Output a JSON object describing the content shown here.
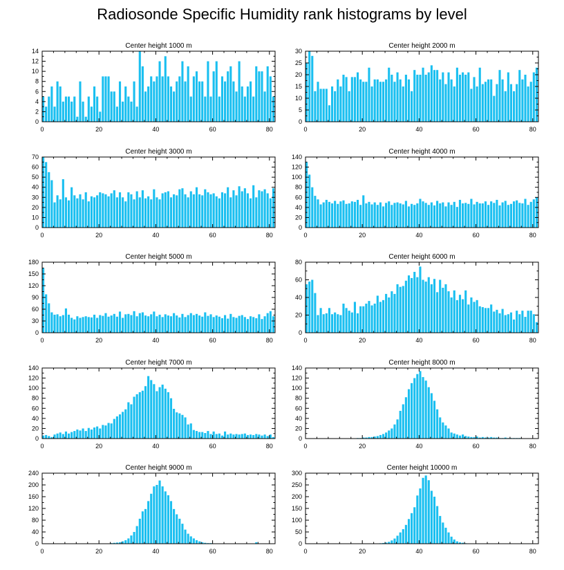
{
  "figure": {
    "title": "Radiosonde Specific Humidity rank histograms by level",
    "bar_color": "#1ABFF0"
  },
  "chart_data": [
    {
      "type": "bar",
      "title": "Center height 1000 m",
      "x_start": 0,
      "xlim": [
        0,
        82
      ],
      "xticks": [
        0,
        20,
        40,
        60,
        80
      ],
      "ylim": [
        0,
        14
      ],
      "yticks": [
        0,
        2,
        4,
        6,
        8,
        10,
        12,
        14
      ],
      "values": [
        5,
        3,
        5,
        7,
        3,
        8,
        7,
        4,
        5,
        5,
        4,
        5,
        1,
        8,
        4,
        1,
        5,
        3,
        7,
        5,
        2,
        9,
        9,
        9,
        6,
        6,
        3,
        8,
        4,
        7,
        5,
        4,
        8,
        3,
        14,
        11,
        6,
        7,
        9,
        8,
        9,
        12,
        9,
        13,
        9,
        7,
        6,
        8,
        9,
        12,
        8,
        11,
        5,
        9,
        10,
        8,
        8,
        5,
        12,
        5,
        10,
        12,
        5,
        9,
        8,
        10,
        11,
        8,
        6,
        12,
        7,
        5,
        7,
        8,
        5,
        11,
        10,
        10,
        6,
        11,
        9,
        5
      ]
    },
    {
      "type": "bar",
      "title": "Center height 2000 m",
      "x_start": 0,
      "xlim": [
        0,
        82
      ],
      "xticks": [
        0,
        20,
        40,
        60,
        80
      ],
      "ylim": [
        0,
        30
      ],
      "yticks": [
        0,
        5,
        10,
        15,
        20,
        25,
        30
      ],
      "values": [
        25,
        30,
        28,
        13,
        17,
        14,
        14,
        14,
        7,
        15,
        13,
        18,
        15,
        20,
        19,
        13,
        19,
        19,
        21,
        18,
        17,
        17,
        23,
        15,
        18,
        18,
        17,
        17,
        18,
        23,
        20,
        17,
        21,
        18,
        15,
        20,
        18,
        13,
        22,
        20,
        20,
        23,
        20,
        21,
        24,
        22,
        22,
        18,
        21,
        16,
        21,
        18,
        15,
        23,
        20,
        21,
        20,
        21,
        14,
        19,
        15,
        23,
        16,
        17,
        18,
        18,
        11,
        16,
        22,
        18,
        13,
        21,
        16,
        13,
        16,
        22,
        18,
        20,
        15,
        17,
        21,
        23
      ]
    },
    {
      "type": "bar",
      "title": "Center height 3000 m",
      "x_start": 0,
      "xlim": [
        0,
        82
      ],
      "xticks": [
        0,
        20,
        40,
        60,
        80
      ],
      "ylim": [
        0,
        70
      ],
      "yticks": [
        0,
        10,
        20,
        30,
        40,
        50,
        60,
        70
      ],
      "values": [
        70,
        65,
        55,
        47,
        25,
        32,
        28,
        48,
        30,
        27,
        40,
        32,
        29,
        33,
        28,
        35,
        26,
        31,
        30,
        32,
        35,
        34,
        33,
        31,
        34,
        37,
        30,
        35,
        30,
        26,
        35,
        33,
        28,
        36,
        30,
        37,
        29,
        31,
        28,
        38,
        30,
        28,
        34,
        35,
        36,
        30,
        33,
        32,
        38,
        39,
        33,
        30,
        36,
        33,
        40,
        33,
        32,
        38,
        35,
        33,
        34,
        31,
        29,
        35,
        34,
        40,
        30,
        37,
        32,
        41,
        36,
        39,
        34,
        29,
        42,
        30,
        37,
        36,
        38,
        34,
        29,
        39
      ]
    },
    {
      "type": "bar",
      "title": "Center height 4000 m",
      "x_start": 0,
      "xlim": [
        0,
        82
      ],
      "xticks": [
        0,
        20,
        40,
        60,
        80
      ],
      "ylim": [
        0,
        140
      ],
      "yticks": [
        0,
        20,
        40,
        60,
        80,
        100,
        120,
        140
      ],
      "values": [
        130,
        105,
        80,
        63,
        56,
        46,
        50,
        55,
        51,
        48,
        53,
        47,
        52,
        54,
        47,
        48,
        52,
        51,
        55,
        45,
        64,
        48,
        51,
        46,
        50,
        45,
        50,
        42,
        49,
        52,
        45,
        49,
        50,
        48,
        46,
        53,
        42,
        47,
        45,
        48,
        57,
        52,
        49,
        45,
        50,
        44,
        53,
        48,
        50,
        42,
        50,
        45,
        51,
        41,
        55,
        48,
        49,
        47,
        57,
        46,
        51,
        48,
        48,
        52,
        45,
        52,
        49,
        55,
        44,
        50,
        53,
        45,
        47,
        52,
        54,
        49,
        48,
        57,
        45,
        51,
        56,
        60
      ]
    },
    {
      "type": "bar",
      "title": "Center height 5000 m",
      "x_start": 0,
      "xlim": [
        0,
        82
      ],
      "xticks": [
        0,
        20,
        40,
        60,
        80
      ],
      "ylim": [
        0,
        180
      ],
      "yticks": [
        0,
        30,
        60,
        90,
        120,
        150,
        180
      ],
      "values": [
        165,
        98,
        75,
        52,
        46,
        47,
        42,
        45,
        62,
        46,
        38,
        34,
        42,
        38,
        40,
        42,
        40,
        39,
        46,
        38,
        45,
        43,
        50,
        41,
        44,
        48,
        41,
        54,
        38,
        47,
        48,
        45,
        55,
        42,
        50,
        52,
        44,
        42,
        47,
        54,
        42,
        46,
        40,
        47,
        44,
        42,
        50,
        44,
        39,
        48,
        40,
        45,
        50,
        45,
        48,
        44,
        41,
        52,
        43,
        47,
        40,
        44,
        41,
        37,
        45,
        36,
        48,
        40,
        38,
        43,
        45,
        40,
        35,
        42,
        40,
        37,
        47,
        35,
        42,
        50,
        55,
        42
      ]
    },
    {
      "type": "bar",
      "title": "Center height 6000 m",
      "x_start": 0,
      "xlim": [
        0,
        82
      ],
      "xticks": [
        0,
        20,
        40,
        60,
        80
      ],
      "ylim": [
        0,
        80
      ],
      "yticks": [
        0,
        20,
        40,
        60,
        80
      ],
      "values": [
        55,
        58,
        60,
        45,
        20,
        28,
        21,
        22,
        28,
        21,
        23,
        21,
        20,
        33,
        28,
        25,
        23,
        35,
        22,
        30,
        30,
        33,
        36,
        31,
        33,
        42,
        35,
        37,
        44,
        40,
        47,
        44,
        55,
        52,
        53,
        59,
        65,
        62,
        69,
        63,
        75,
        60,
        58,
        63,
        55,
        61,
        46,
        60,
        51,
        55,
        47,
        40,
        48,
        37,
        43,
        38,
        48,
        32,
        40,
        35,
        37,
        30,
        29,
        28,
        28,
        32,
        24,
        26,
        22,
        27,
        20,
        21,
        23,
        15,
        25,
        21,
        25,
        18,
        25,
        25,
        21,
        12
      ]
    },
    {
      "type": "bar",
      "title": "Center height 7000 m",
      "x_start": 0,
      "xlim": [
        0,
        82
      ],
      "xticks": [
        0,
        20,
        40,
        60,
        80
      ],
      "ylim": [
        0,
        140
      ],
      "yticks": [
        0,
        20,
        40,
        60,
        80,
        100,
        120,
        140
      ],
      "values": [
        6,
        7,
        5,
        3,
        8,
        10,
        12,
        9,
        14,
        10,
        13,
        15,
        18,
        16,
        20,
        15,
        21,
        18,
        22,
        24,
        20,
        27,
        26,
        31,
        30,
        39,
        44,
        48,
        53,
        58,
        72,
        68,
        83,
        88,
        92,
        95,
        104,
        124,
        116,
        108,
        94,
        102,
        107,
        99,
        92,
        80,
        59,
        52,
        50,
        47,
        42,
        28,
        30,
        17,
        15,
        13,
        13,
        11,
        15,
        9,
        14,
        9,
        10,
        6,
        14,
        8,
        10,
        8,
        9,
        8,
        9,
        10,
        7,
        8,
        7,
        9,
        8,
        6,
        8,
        5,
        8,
        3
      ]
    },
    {
      "type": "bar",
      "title": "Center height 8000 m",
      "x_start": 0,
      "xlim": [
        0,
        82
      ],
      "xticks": [
        0,
        20,
        40,
        60,
        80
      ],
      "ylim": [
        0,
        140
      ],
      "yticks": [
        0,
        20,
        40,
        60,
        80,
        100,
        120,
        140
      ],
      "values": [
        0,
        0,
        0,
        0,
        0,
        0,
        0,
        0,
        0,
        0,
        0,
        0,
        0,
        0,
        0,
        0,
        0,
        0,
        1,
        1,
        2,
        2,
        3,
        3,
        4,
        5,
        7,
        9,
        12,
        16,
        20,
        28,
        38,
        55,
        68,
        82,
        98,
        110,
        120,
        128,
        134,
        122,
        115,
        102,
        90,
        75,
        58,
        42,
        32,
        26,
        20,
        12,
        10,
        8,
        6,
        8,
        5,
        4,
        3,
        3,
        4,
        2,
        3,
        2,
        2,
        3,
        2,
        2,
        1,
        1,
        2,
        1,
        1,
        1,
        1,
        1,
        0,
        0,
        0,
        0,
        0,
        0
      ]
    },
    {
      "type": "bar",
      "title": "Center height 9000 m",
      "x_start": 0,
      "xlim": [
        0,
        82
      ],
      "xticks": [
        0,
        20,
        40,
        60,
        80
      ],
      "ylim": [
        0,
        240
      ],
      "yticks": [
        0,
        40,
        80,
        120,
        160,
        200,
        240
      ],
      "values": [
        0,
        0,
        0,
        0,
        0,
        0,
        0,
        0,
        0,
        0,
        0,
        0,
        0,
        0,
        0,
        0,
        0,
        0,
        0,
        0,
        0,
        0,
        1,
        1,
        2,
        3,
        4,
        5,
        8,
        12,
        18,
        28,
        40,
        60,
        85,
        110,
        118,
        145,
        170,
        195,
        200,
        215,
        195,
        178,
        165,
        145,
        118,
        100,
        85,
        68,
        48,
        34,
        25,
        18,
        12,
        8,
        5,
        3,
        2,
        2,
        1,
        1,
        1,
        0,
        0,
        0,
        0,
        0,
        0,
        0,
        0,
        0,
        0,
        0,
        0,
        5,
        0,
        0,
        0,
        0,
        0,
        0
      ]
    },
    {
      "type": "bar",
      "title": "Center height 10000 m",
      "x_start": 0,
      "xlim": [
        0,
        82
      ],
      "xticks": [
        0,
        20,
        40,
        60,
        80
      ],
      "ylim": [
        0,
        300
      ],
      "yticks": [
        0,
        50,
        100,
        150,
        200,
        250,
        300
      ],
      "values": [
        0,
        0,
        0,
        0,
        0,
        0,
        0,
        0,
        0,
        0,
        0,
        0,
        0,
        0,
        0,
        0,
        0,
        0,
        0,
        0,
        0,
        0,
        0,
        0,
        0,
        1,
        2,
        3,
        5,
        8,
        14,
        22,
        34,
        48,
        62,
        80,
        105,
        130,
        155,
        205,
        235,
        280,
        290,
        270,
        225,
        200,
        160,
        118,
        90,
        68,
        48,
        30,
        18,
        10,
        6,
        4,
        2,
        1,
        1,
        1,
        1,
        0,
        0,
        0,
        0,
        0,
        0,
        0,
        0,
        0,
        0,
        0,
        0,
        0,
        0,
        0,
        0,
        0,
        0,
        0,
        0,
        0
      ]
    }
  ]
}
